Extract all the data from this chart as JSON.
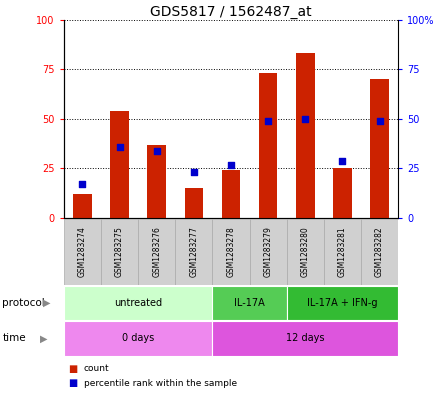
{
  "title": "GDS5817 / 1562487_at",
  "samples": [
    "GSM1283274",
    "GSM1283275",
    "GSM1283276",
    "GSM1283277",
    "GSM1283278",
    "GSM1283279",
    "GSM1283280",
    "GSM1283281",
    "GSM1283282"
  ],
  "counts": [
    12,
    54,
    37,
    15,
    24,
    73,
    83,
    25,
    70
  ],
  "percentiles": [
    17,
    36,
    34,
    23,
    27,
    49,
    50,
    29,
    49
  ],
  "ylim_left": [
    0,
    100
  ],
  "ylim_right": [
    0,
    100
  ],
  "yticks_left": [
    0,
    25,
    50,
    75,
    100
  ],
  "yticks_right": [
    0,
    25,
    50,
    75,
    100
  ],
  "ytick_labels_right": [
    "0",
    "25",
    "50",
    "75",
    "100%"
  ],
  "bar_color": "#cc2200",
  "dot_color": "#0000cc",
  "bg_color": "#ffffff",
  "sample_bg": "#d0d0d0",
  "protocol_groups": [
    {
      "label": "untreated",
      "start": 0,
      "end": 4,
      "color": "#ccffcc"
    },
    {
      "label": "IL-17A",
      "start": 4,
      "end": 6,
      "color": "#55cc55"
    },
    {
      "label": "IL-17A + IFN-g",
      "start": 6,
      "end": 9,
      "color": "#33bb33"
    }
  ],
  "time_groups": [
    {
      "label": "0 days",
      "start": 0,
      "end": 4,
      "color": "#ee88ee"
    },
    {
      "label": "12 days",
      "start": 4,
      "end": 9,
      "color": "#dd55dd"
    }
  ],
  "protocol_label": "protocol",
  "time_label": "time",
  "legend_count_color": "#cc2200",
  "legend_dot_color": "#0000cc",
  "legend_count_label": "count",
  "legend_dot_label": "percentile rank within the sample",
  "bar_width": 0.5,
  "title_fontsize": 10,
  "tick_fontsize": 7,
  "label_fontsize": 8
}
